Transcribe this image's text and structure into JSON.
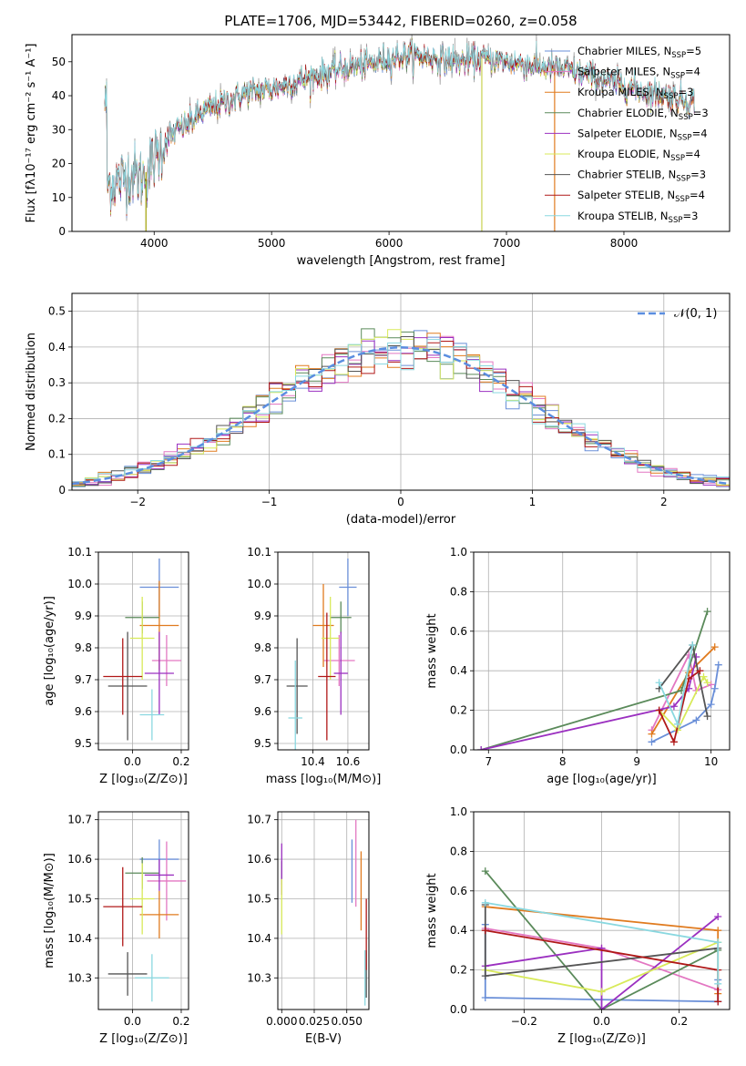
{
  "title": "PLATE=1706, MJD=53442, FIBERID=0260, z=0.058",
  "colors": {
    "Chabrier MILES": "#6a8fd8",
    "Salpeter MILES": "#e377c2",
    "Kroupa MILES": "#e07b1f",
    "Chabrier ELODIE": "#5a8a5a",
    "Salpeter ELODIE": "#9b30c0",
    "Kroupa ELODIE": "#d8ea5a",
    "Chabrier STELIB": "#555555",
    "Salpeter STELIB": "#b01818",
    "Kroupa STELIB": "#8ad8e0",
    "data": "#9a9a9a",
    "gauss": "#5b8ee0"
  },
  "legend": [
    {
      "model": "Chabrier MILES",
      "label": "Chabrier MILES, N",
      "sub": "SSP",
      "suffix": "=5"
    },
    {
      "model": "Salpeter MILES",
      "label": "Salpeter MILES, N",
      "sub": "SSP",
      "suffix": "=4"
    },
    {
      "model": "Kroupa MILES",
      "label": "Kroupa MILES, N",
      "sub": "SSP",
      "suffix": "=3"
    },
    {
      "model": "Chabrier ELODIE",
      "label": "Chabrier ELODIE, N",
      "sub": "SSP",
      "suffix": "=3"
    },
    {
      "model": "Salpeter ELODIE",
      "label": "Salpeter ELODIE, N",
      "sub": "SSP",
      "suffix": "=4"
    },
    {
      "model": "Kroupa ELODIE",
      "label": "Kroupa ELODIE, N",
      "sub": "SSP",
      "suffix": "=4"
    },
    {
      "model": "Chabrier STELIB",
      "label": "Chabrier STELIB, N",
      "sub": "SSP",
      "suffix": "=3"
    },
    {
      "model": "Salpeter STELIB",
      "label": "Salpeter STELIB, N",
      "sub": "SSP",
      "suffix": "=4"
    },
    {
      "model": "Kroupa STELIB",
      "label": "Kroupa STELIB, N",
      "sub": "SSP",
      "suffix": "=3"
    }
  ],
  "chart_data": [
    {
      "id": "spectrum",
      "type": "line",
      "xlabel": "wavelength [Angstrom, rest frame]",
      "ylabel": "Flux [fλ10⁻¹⁷ erg cm⁻² s⁻¹ A⁻¹]",
      "xlim": [
        3300,
        8900
      ],
      "ylim": [
        0,
        58
      ],
      "xticks": [
        4000,
        5000,
        6000,
        7000,
        8000
      ],
      "yticks": [
        0,
        10,
        20,
        30,
        40,
        50
      ],
      "continuum": {
        "x": [
          3600,
          3700,
          3800,
          3900,
          4000,
          4100,
          4200,
          4300,
          4400,
          4600,
          4800,
          5000,
          5200,
          5400,
          5600,
          5800,
          6000,
          6200,
          6400,
          6600,
          6800,
          7000,
          7200,
          7400,
          7600,
          7800,
          8000,
          8200,
          8400,
          8600
        ],
        "y": [
          14,
          15,
          17,
          16,
          21,
          27,
          30,
          32,
          35,
          38,
          41,
          42,
          44,
          46,
          48,
          49,
          51,
          52,
          51,
          50,
          51,
          50,
          49,
          48,
          47,
          45,
          43,
          41,
          40,
          38
        ]
      },
      "spikes": [
        {
          "x": 3930,
          "y": 0
        },
        {
          "x": 6790,
          "y": 0
        },
        {
          "x": 7410,
          "y": 0
        }
      ]
    },
    {
      "id": "residuals",
      "type": "step",
      "xlabel": "(data-model)/error",
      "ylabel": "Normed distribution",
      "xlim": [
        -2.5,
        2.5
      ],
      "ylim": [
        0,
        0.55
      ],
      "xticks": [
        -2,
        -1,
        0,
        1,
        2
      ],
      "yticks": [
        0,
        0.1,
        0.2,
        0.3,
        0.4,
        0.5
      ],
      "bin_width": 0.1,
      "legend_label": "𝒩(0, 1)"
    },
    {
      "id": "age_vs_Z",
      "type": "errorbar",
      "xlabel": "Z [log₁₀(Z/Z⊙)]",
      "ylabel": "age  [log₁₀(age/yr)]",
      "xlim": [
        -0.14,
        0.23
      ],
      "ylim": [
        9.48,
        10.1
      ],
      "xticks": [
        0.0,
        0.2
      ],
      "xticklabels": [
        "0.0",
        "0.2"
      ],
      "yticks": [
        9.5,
        9.6,
        9.7,
        9.8,
        9.9,
        10.0,
        10.1
      ],
      "yticklabels": [
        "9.5",
        "9.6",
        "9.7",
        "9.8",
        "9.9",
        "10.0",
        "10.1"
      ],
      "points": [
        {
          "model": "Chabrier MILES",
          "x": 0.11,
          "y": 9.99,
          "xerr": 0.08,
          "yerr": 0.09
        },
        {
          "model": "Salpeter MILES",
          "x": 0.14,
          "y": 9.76,
          "xerr": 0.06,
          "yerr": 0.08
        },
        {
          "model": "Kroupa MILES",
          "x": 0.11,
          "y": 9.87,
          "xerr": 0.08,
          "yerr": 0.14
        },
        {
          "model": "Chabrier ELODIE",
          "x": 0.04,
          "y": 9.895,
          "xerr": 0.07,
          "yerr": 0.05
        },
        {
          "model": "Salpeter ELODIE",
          "x": 0.11,
          "y": 9.72,
          "xerr": 0.06,
          "yerr": 0.13
        },
        {
          "model": "Kroupa ELODIE",
          "x": 0.04,
          "y": 9.83,
          "xerr": 0.05,
          "yerr": 0.13
        },
        {
          "model": "Chabrier STELIB",
          "x": -0.02,
          "y": 9.68,
          "xerr": 0.08,
          "yerr": 0.17
        },
        {
          "model": "Salpeter STELIB",
          "x": -0.04,
          "y": 9.71,
          "xerr": 0.08,
          "yerr": 0.12
        },
        {
          "model": "Kroupa STELIB",
          "x": 0.08,
          "y": 9.59,
          "xerr": 0.05,
          "yerr": 0.08
        }
      ]
    },
    {
      "id": "age_vs_mass",
      "type": "errorbar",
      "xlabel": "mass [log₁₀(M/M⊙)]",
      "xlim": [
        10.2,
        10.72
      ],
      "ylim": [
        9.48,
        10.1
      ],
      "xticks": [
        10.4,
        10.6
      ],
      "xticklabels": [
        "10.4",
        "10.6"
      ],
      "yticks": [
        9.5,
        9.6,
        9.7,
        9.8,
        9.9,
        10.0,
        10.1
      ],
      "yticklabels": [
        "9.5",
        "9.6",
        "9.7",
        "9.8",
        "9.9",
        "10.0",
        "10.1"
      ],
      "points": [
        {
          "model": "Chabrier MILES",
          "x": 10.6,
          "y": 9.99,
          "xerr": 0.05,
          "yerr": 0.09
        },
        {
          "model": "Salpeter MILES",
          "x": 10.55,
          "y": 9.76,
          "xerr": 0.09,
          "yerr": 0.08
        },
        {
          "model": "Kroupa MILES",
          "x": 10.46,
          "y": 9.87,
          "xerr": 0.06,
          "yerr": 0.13
        },
        {
          "model": "Chabrier ELODIE",
          "x": 10.56,
          "y": 9.895,
          "xerr": 0.06,
          "yerr": 0.05
        },
        {
          "model": "Salpeter ELODIE",
          "x": 10.56,
          "y": 9.72,
          "xerr": 0.04,
          "yerr": 0.13
        },
        {
          "model": "Kroupa ELODIE",
          "x": 10.5,
          "y": 9.83,
          "xerr": 0.05,
          "yerr": 0.13
        },
        {
          "model": "Chabrier STELIB",
          "x": 10.31,
          "y": 9.68,
          "xerr": 0.06,
          "yerr": 0.15
        },
        {
          "model": "Salpeter STELIB",
          "x": 10.48,
          "y": 9.71,
          "xerr": 0.05,
          "yerr": 0.2
        },
        {
          "model": "Kroupa STELIB",
          "x": 10.3,
          "y": 9.58,
          "xerr": 0.04,
          "yerr": 0.18
        }
      ]
    },
    {
      "id": "weight_vs_age",
      "type": "line",
      "xlabel": "age  [log₁₀(age/yr)]",
      "ylabel": "mass weight",
      "xlim": [
        6.8,
        10.25
      ],
      "ylim": [
        0,
        1.0
      ],
      "xticks": [
        7,
        8,
        9,
        10
      ],
      "xticklabels": [
        "7",
        "8",
        "9",
        "10"
      ],
      "yticks": [
        0,
        0.2,
        0.4,
        0.6,
        0.8,
        1.0
      ],
      "yticklabels": [
        "0.0",
        "0.2",
        "0.4",
        "0.6",
        "0.8",
        "1.0"
      ],
      "series": [
        {
          "model": "Chabrier MILES",
          "x": [
            9.2,
            9.8,
            10.0,
            10.05,
            10.1
          ],
          "y": [
            0.04,
            0.15,
            0.23,
            0.31,
            0.43
          ]
        },
        {
          "model": "Salpeter MILES",
          "x": [
            9.2,
            9.7,
            9.8,
            10.0
          ],
          "y": [
            0.1,
            0.48,
            0.3,
            0.33
          ]
        },
        {
          "model": "Kroupa MILES",
          "x": [
            9.2,
            9.7,
            10.05
          ],
          "y": [
            0.08,
            0.39,
            0.52
          ]
        },
        {
          "model": "Chabrier ELODIE",
          "x": [
            6.9,
            9.6,
            9.95
          ],
          "y": [
            0.0,
            0.3,
            0.7
          ]
        },
        {
          "model": "Salpeter ELODIE",
          "x": [
            6.9,
            9.5,
            9.7,
            9.8
          ],
          "y": [
            0.0,
            0.22,
            0.31,
            0.47
          ]
        },
        {
          "model": "Kroupa ELODIE",
          "x": [
            9.3,
            9.55,
            9.9,
            9.95
          ],
          "y": [
            0.2,
            0.1,
            0.37,
            0.34
          ]
        },
        {
          "model": "Chabrier STELIB",
          "x": [
            9.3,
            9.75,
            9.95
          ],
          "y": [
            0.31,
            0.53,
            0.17
          ]
        },
        {
          "model": "Salpeter STELIB",
          "x": [
            9.3,
            9.5,
            9.7,
            9.85
          ],
          "y": [
            0.2,
            0.04,
            0.36,
            0.4
          ]
        },
        {
          "model": "Kroupa STELIB",
          "x": [
            9.3,
            9.55,
            9.75
          ],
          "y": [
            0.34,
            0.13,
            0.53
          ]
        }
      ]
    },
    {
      "id": "mass_vs_Z",
      "type": "errorbar",
      "xlabel": "Z [log₁₀(Z/Z⊙)]",
      "ylabel": "mass [log₁₀(M/M⊙)]",
      "xlim": [
        -0.14,
        0.23
      ],
      "ylim": [
        10.22,
        10.72
      ],
      "xticks": [
        0.0,
        0.2
      ],
      "xticklabels": [
        "0.0",
        "0.2"
      ],
      "yticks": [
        10.3,
        10.4,
        10.5,
        10.6,
        10.7
      ],
      "yticklabels": [
        "10.3",
        "10.4",
        "10.5",
        "10.6",
        "10.7"
      ],
      "points": [
        {
          "model": "Chabrier MILES",
          "x": 0.11,
          "y": 10.6,
          "xerr": 0.08,
          "yerr": 0.05
        },
        {
          "model": "Salpeter MILES",
          "x": 0.14,
          "y": 10.545,
          "xerr": 0.08,
          "yerr": 0.1
        },
        {
          "model": "Kroupa MILES",
          "x": 0.11,
          "y": 10.46,
          "xerr": 0.08,
          "yerr": 0.06
        },
        {
          "model": "Chabrier ELODIE",
          "x": 0.04,
          "y": 10.565,
          "xerr": 0.07,
          "yerr": 0.04
        },
        {
          "model": "Salpeter ELODIE",
          "x": 0.11,
          "y": 10.56,
          "xerr": 0.06,
          "yerr": 0.04
        },
        {
          "model": "Kroupa ELODIE",
          "x": 0.04,
          "y": 10.5,
          "xerr": 0.05,
          "yerr": 0.09
        },
        {
          "model": "Chabrier STELIB",
          "x": -0.02,
          "y": 10.31,
          "xerr": 0.08,
          "yerr": 0.055
        },
        {
          "model": "Salpeter STELIB",
          "x": -0.04,
          "y": 10.48,
          "xerr": 0.08,
          "yerr": 0.1
        },
        {
          "model": "Kroupa STELIB",
          "x": 0.08,
          "y": 10.3,
          "xerr": 0.07,
          "yerr": 0.06
        }
      ]
    },
    {
      "id": "mass_vs_ebv",
      "type": "errorbar",
      "xlabel": "E(B-V)",
      "xlim": [
        -0.003,
        0.067
      ],
      "ylim": [
        10.22,
        10.72
      ],
      "xticks": [
        0.0,
        0.025,
        0.05
      ],
      "xticklabels": [
        "0.000",
        "0.025",
        "0.050"
      ],
      "yticks": [
        10.3,
        10.4,
        10.5,
        10.6,
        10.7
      ],
      "yticklabels": [
        "10.3",
        "10.4",
        "10.5",
        "10.6",
        "10.7"
      ],
      "points": [
        {
          "model": "Chabrier MILES",
          "x": 0.054,
          "y": 10.57,
          "xerr": 0,
          "yerr": 0.08
        },
        {
          "model": "Salpeter MILES",
          "x": 0.057,
          "y": 10.59,
          "xerr": 0,
          "yerr": 0.11
        },
        {
          "model": "Kroupa MILES",
          "x": 0.061,
          "y": 10.52,
          "xerr": 0,
          "yerr": 0.1
        },
        {
          "model": "Chabrier ELODIE",
          "x": 0.0,
          "y": 10.565,
          "xerr": 0,
          "yerr": 0.03
        },
        {
          "model": "Salpeter ELODIE",
          "x": 0.0,
          "y": 10.575,
          "xerr": 0,
          "yerr": 0.065
        },
        {
          "model": "Kroupa ELODIE",
          "x": 0.0,
          "y": 10.48,
          "xerr": 0,
          "yerr": 0.07
        },
        {
          "model": "Chabrier STELIB",
          "x": 0.065,
          "y": 10.31,
          "xerr": 0,
          "yerr": 0.06
        },
        {
          "model": "Salpeter STELIB",
          "x": 0.065,
          "y": 10.41,
          "xerr": 0,
          "yerr": 0.09
        },
        {
          "model": "Kroupa STELIB",
          "x": 0.064,
          "y": 10.3,
          "xerr": 0,
          "yerr": 0.07
        }
      ]
    },
    {
      "id": "weight_vs_Z",
      "type": "line",
      "xlabel": "Z [log₁₀(Z/Z⊙)]",
      "ylabel": "mass weight",
      "xlim": [
        -0.33,
        0.33
      ],
      "ylim": [
        0,
        1.0
      ],
      "xticks": [
        -0.2,
        0.0,
        0.2
      ],
      "xticklabels": [
        "−0.2",
        "0.0",
        "0.2"
      ],
      "yticks": [
        0,
        0.2,
        0.4,
        0.6,
        0.8,
        1.0
      ],
      "yticklabels": [
        "0.0",
        "0.2",
        "0.4",
        "0.6",
        "0.8",
        "1.0"
      ],
      "series": [
        {
          "model": "Chabrier MILES",
          "x": [
            -0.3,
            -0.3,
            0.3,
            0.3
          ],
          "y": [
            0.43,
            0.06,
            0.04,
            0.15
          ]
        },
        {
          "model": "Salpeter MILES",
          "x": [
            -0.3,
            0.0,
            0.3
          ],
          "y": [
            0.41,
            0.31,
            0.1
          ]
        },
        {
          "model": "Kroupa MILES",
          "x": [
            -0.3,
            0.3,
            0.3
          ],
          "y": [
            0.52,
            0.4,
            0.08
          ]
        },
        {
          "model": "Chabrier ELODIE",
          "x": [
            -0.3,
            0.0,
            0.3
          ],
          "y": [
            0.7,
            0.0,
            0.3
          ]
        },
        {
          "model": "Salpeter ELODIE",
          "x": [
            -0.3,
            0.0,
            0.0,
            0.3
          ],
          "y": [
            0.22,
            0.31,
            0.0,
            0.47
          ]
        },
        {
          "model": "Kroupa ELODIE",
          "x": [
            -0.3,
            0.0,
            0.3
          ],
          "y": [
            0.2,
            0.09,
            0.34
          ]
        },
        {
          "model": "Chabrier STELIB",
          "x": [
            -0.3,
            -0.3,
            0.3
          ],
          "y": [
            0.53,
            0.17,
            0.31
          ]
        },
        {
          "model": "Salpeter STELIB",
          "x": [
            -0.3,
            0.3,
            0.3
          ],
          "y": [
            0.4,
            0.2,
            0.04
          ]
        },
        {
          "model": "Kroupa STELIB",
          "x": [
            -0.3,
            0.3,
            0.3
          ],
          "y": [
            0.54,
            0.34,
            0.13
          ]
        }
      ]
    }
  ]
}
